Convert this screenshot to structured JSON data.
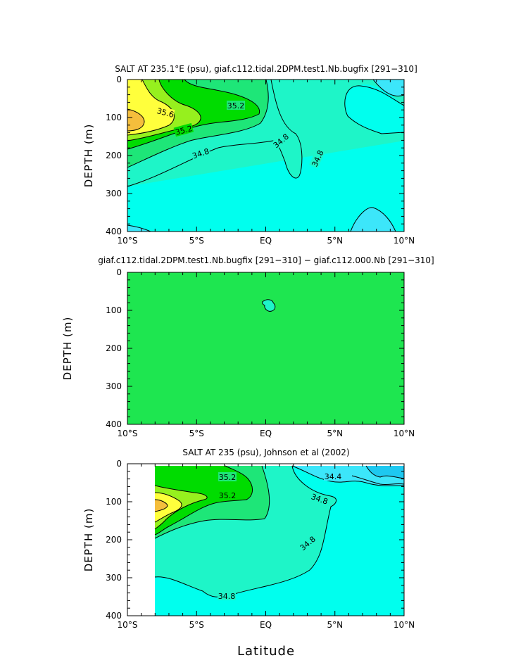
{
  "colors": {
    "background": "#ffffff",
    "s_lt_34_4": "#1ec8f0",
    "s_34_4_34_6": "#3ce6fa",
    "s_34_6_34_8": "#00ffee",
    "s_34_8_35_0": "#1ef5c8",
    "s_35_0_35_2": "#1ee678",
    "s_35_2_35_4": "#00dc00",
    "s_35_4_35_6": "#96f01e",
    "s_35_6_35_8": "#ffff3c",
    "s_gt_35_8": "#f5be3c",
    "diff_fill": "#1ee650",
    "diff_blob": "#1ef5c8"
  },
  "x_label": "Latitude",
  "chart_data": [
    {
      "type": "contour",
      "title": "SALT AT 235.1°E (psu), giaf.c112.tidal.2DPM.test1.Nb.bugfix [291−310]",
      "ylabel": "DEPTH (m)",
      "xlabel": "",
      "xlim": [
        -10,
        10
      ],
      "ylim": [
        400,
        0
      ],
      "x_ticks": [
        "10°S",
        "5°S",
        "EQ",
        "5°N",
        "10°N"
      ],
      "y_ticks": [
        "0",
        "100",
        "200",
        "300",
        "400"
      ],
      "contour_labels": [
        "35.6",
        "35.2",
        "35.2",
        "34.8",
        "34.8",
        "34.8"
      ],
      "levels": [
        34.4,
        34.6,
        34.8,
        35.0,
        35.2,
        35.4,
        35.6,
        35.8
      ]
    },
    {
      "type": "contour",
      "title": "giaf.c112.tidal.2DPM.test1.Nb.bugfix [291−310] − giaf.c112.000.Nb [291−310]",
      "ylabel": "DEPTH (m)",
      "xlabel": "",
      "xlim": [
        -10,
        10
      ],
      "ylim": [
        400,
        0
      ],
      "x_ticks": [
        "10°S",
        "5°S",
        "EQ",
        "5°N",
        "10°N"
      ],
      "y_ticks": [
        "0",
        "100",
        "200",
        "300",
        "400"
      ]
    },
    {
      "type": "contour",
      "title": "SALT AT 235 (psu), Johnson et al (2002)",
      "ylabel": "DEPTH (m)",
      "xlabel": "Latitude",
      "xlim": [
        -10,
        10
      ],
      "ylim": [
        400,
        0
      ],
      "x_ticks": [
        "10°S",
        "5°S",
        "EQ",
        "5°N",
        "10°N"
      ],
      "y_ticks": [
        "0",
        "100",
        "200",
        "300",
        "400"
      ],
      "contour_labels": [
        "35.2",
        "35.2",
        "34.4",
        "34.8",
        "34.8",
        "34.8"
      ],
      "levels": [
        34.4,
        34.6,
        34.8,
        35.0,
        35.2,
        35.4,
        35.6,
        35.8
      ]
    }
  ]
}
